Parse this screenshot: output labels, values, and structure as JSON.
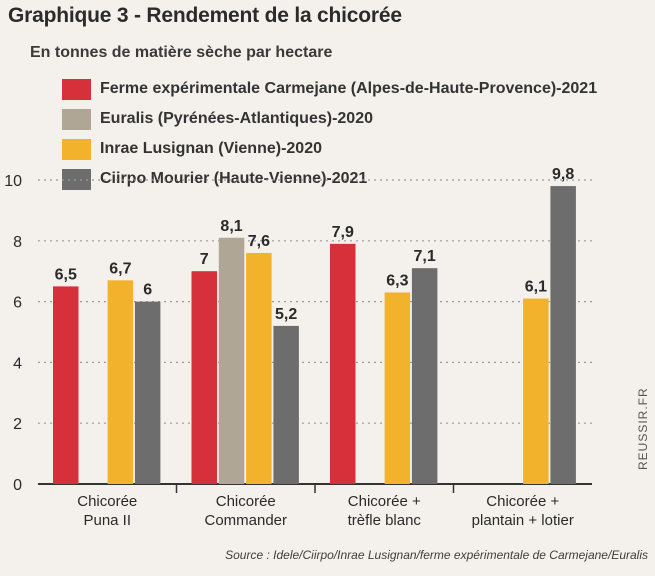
{
  "chart_data": {
    "type": "bar",
    "title": "Graphique 3 - Rendement de la chicorée",
    "subtitle": "En tonnes de matière sèche par hectare",
    "categories": [
      [
        "Chicorée",
        "Puna II"
      ],
      [
        "Chicorée",
        "Commander"
      ],
      [
        "Chicorée +",
        "trèfle blanc"
      ],
      [
        "Chicorée +",
        "plantain + lotier"
      ]
    ],
    "series": [
      {
        "name": "Ferme expérimentale Carmejane (Alpes-de-Haute-Provence)-2021",
        "color": "#d6303a",
        "values": [
          6.5,
          7,
          7.9,
          null
        ],
        "labels": [
          "6,5",
          "7",
          "7,9",
          ""
        ]
      },
      {
        "name": "Euralis (Pyrénées-Atlantiques)-2020",
        "color": "#b0a696",
        "values": [
          null,
          8.1,
          null,
          null
        ],
        "labels": [
          "",
          "8,1",
          "",
          ""
        ]
      },
      {
        "name": "Inrae Lusignan (Vienne)-2020",
        "color": "#f3b22b",
        "values": [
          6.7,
          7.6,
          6.3,
          6.1
        ],
        "labels": [
          "6,7",
          "7,6",
          "6,3",
          "6,1"
        ]
      },
      {
        "name": "Ciirpo Mourier (Haute-Vienne)-2021",
        "color": "#6d6d6d",
        "values": [
          6,
          5.2,
          7.1,
          9.8
        ],
        "labels": [
          "6",
          "5,2",
          "7,1",
          "9,8"
        ]
      }
    ],
    "ylim": [
      0,
      10
    ],
    "yticks": [
      0,
      2,
      4,
      6,
      8,
      10
    ],
    "grid": true,
    "legend": "top-left"
  },
  "source": "Source : Idele/Ciirpo/Inrae Lusignan/ferme expérimentale de Carmejane/Euralis",
  "watermark": "REUSSIR.FR"
}
